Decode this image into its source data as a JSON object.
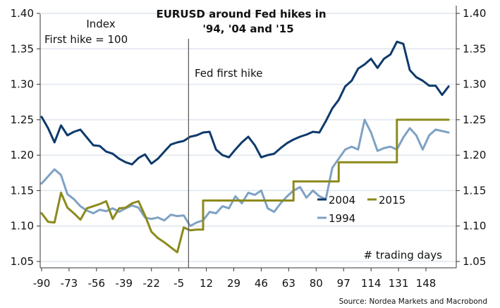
{
  "chart_data": {
    "type": "line",
    "title": "EURUSD around Fed hikes in '94, '04 and '15",
    "title_lines": [
      "EURUSD around Fed hikes in",
      "'94, '04 and '15"
    ],
    "index_label": "Index",
    "index_sublabel": "First hike = 100",
    "event_label": "Fed first hike",
    "event_x": 1,
    "xlabel": "# trading days",
    "source": "Source: Nordea Markets and Macrobond",
    "xlim": [
      -91,
      166
    ],
    "ylim": [
      1.04,
      1.41
    ],
    "x_ticks": [
      -90,
      -73,
      -56,
      -39,
      -22,
      -5,
      12,
      29,
      46,
      63,
      80,
      97,
      114,
      131,
      148
    ],
    "x_tick_labels": [
      "-90",
      "-73",
      "-56",
      "-39",
      "-22",
      "-5",
      "12",
      "29",
      "46",
      "63",
      "80",
      "97",
      "114",
      "131",
      "148"
    ],
    "y_ticks": [
      1.05,
      1.1,
      1.15,
      1.2,
      1.25,
      1.3,
      1.35,
      1.4
    ],
    "y_tick_labels": [
      "1.05",
      "1.10",
      "1.15",
      "1.20",
      "1.25",
      "1.30",
      "1.35",
      "1.40"
    ],
    "grid": true,
    "legend": "center-right",
    "x": [
      -90,
      -86,
      -82,
      -78,
      -74,
      -70,
      -66,
      -62,
      -58,
      -54,
      -50,
      -46,
      -42,
      -38,
      -34,
      -30,
      -26,
      -22,
      -18,
      -14,
      -10,
      -6,
      -2,
      2,
      6,
      10,
      14,
      18,
      22,
      26,
      30,
      34,
      38,
      42,
      46,
      50,
      54,
      58,
      62,
      66,
      70,
      74,
      78,
      82,
      86,
      90,
      94,
      98,
      102,
      106,
      110,
      114,
      118,
      122,
      126,
      130,
      134,
      138,
      142,
      146,
      150,
      154,
      158,
      162
    ],
    "series": [
      {
        "name": "2004",
        "color": "#0e3a6b",
        "values": [
          1.254,
          1.238,
          1.218,
          1.242,
          1.228,
          1.233,
          1.236,
          1.225,
          1.214,
          1.213,
          1.205,
          1.202,
          1.195,
          1.19,
          1.187,
          1.196,
          1.201,
          1.188,
          1.195,
          1.205,
          1.215,
          1.218,
          1.22,
          1.226,
          1.228,
          1.232,
          1.233,
          1.208,
          1.2,
          1.197,
          1.208,
          1.218,
          1.226,
          1.214,
          1.197,
          1.2,
          1.202,
          1.21,
          1.217,
          1.222,
          1.226,
          1.229,
          1.233,
          1.232,
          1.248,
          1.266,
          1.278,
          1.297,
          1.305,
          1.322,
          1.328,
          1.336,
          1.323,
          1.336,
          1.342,
          1.36,
          1.357,
          1.32,
          1.31,
          1.305,
          1.298,
          1.298,
          1.285,
          1.297
        ]
      },
      {
        "name": "2015",
        "color": "#8c8a1c",
        "values": [
          1.118,
          1.106,
          1.105,
          1.147,
          1.126,
          1.118,
          1.109,
          1.125,
          1.128,
          1.131,
          1.135,
          1.11,
          1.125,
          1.126,
          1.132,
          1.135,
          1.115,
          1.092,
          1.083,
          1.077,
          1.07,
          1.063,
          1.098,
          1.094,
          1.095,
          1.136,
          1.136,
          1.136,
          1.136,
          1.136,
          1.136,
          1.136,
          1.136,
          1.136,
          1.136,
          1.136,
          1.136,
          1.136,
          1.136,
          1.163,
          1.163,
          1.163,
          1.163,
          1.163,
          1.163,
          1.163,
          1.19,
          1.19,
          1.19,
          1.19,
          1.19,
          1.19,
          1.19,
          1.19,
          1.19,
          1.25,
          1.25,
          1.25,
          1.25,
          1.25,
          1.25,
          1.25,
          1.25,
          1.25
        ]
      },
      {
        "name": "1994",
        "color": "#7ea2c4",
        "values": [
          1.16,
          1.17,
          1.18,
          1.172,
          1.145,
          1.138,
          1.128,
          1.122,
          1.118,
          1.123,
          1.121,
          1.125,
          1.12,
          1.125,
          1.129,
          1.126,
          1.112,
          1.11,
          1.112,
          1.108,
          1.116,
          1.114,
          1.115,
          1.1,
          1.105,
          1.108,
          1.12,
          1.118,
          1.128,
          1.125,
          1.142,
          1.132,
          1.147,
          1.144,
          1.15,
          1.125,
          1.12,
          1.132,
          1.142,
          1.15,
          1.155,
          1.14,
          1.15,
          1.142,
          1.138,
          1.182,
          1.195,
          1.208,
          1.212,
          1.208,
          1.25,
          1.232,
          1.206,
          1.21,
          1.212,
          1.208,
          1.225,
          1.238,
          1.228,
          1.208,
          1.228,
          1.236,
          1.234,
          1.232
        ]
      }
    ]
  }
}
